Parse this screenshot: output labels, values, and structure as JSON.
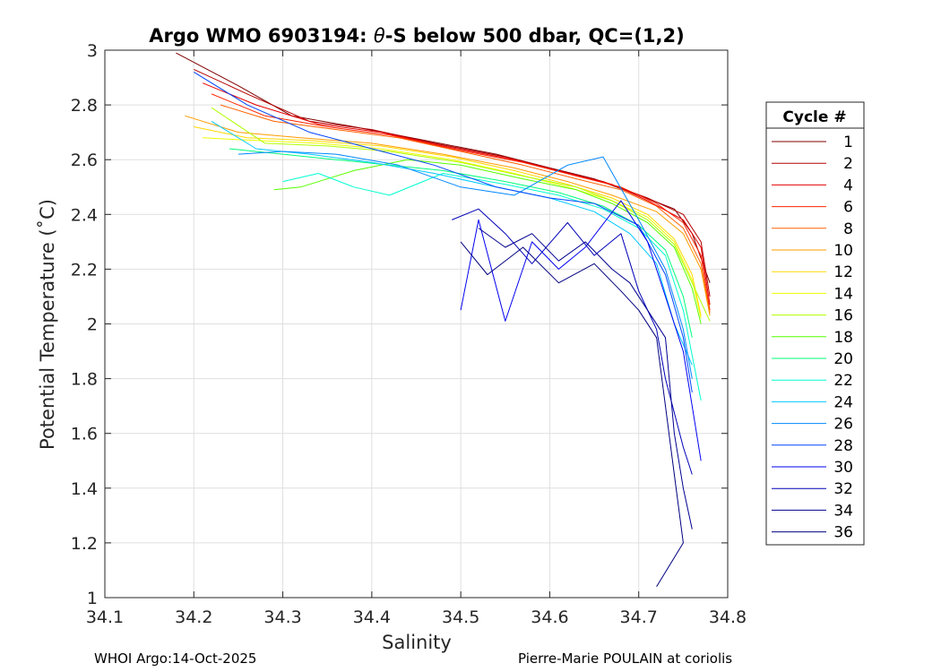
{
  "chart_data": {
    "type": "line",
    "title_prefix": "Argo WMO 6903194: ",
    "title_theta": "θ",
    "title_suffix": "-S below 500 dbar,  QC=(1,2)",
    "xlabel": "Salinity",
    "ylabel": "Potential Temperature (˚C)",
    "xlim": [
      34.1,
      34.8
    ],
    "ylim": [
      1,
      3
    ],
    "xticks": [
      "34.1",
      "34.2",
      "34.3",
      "34.4",
      "34.5",
      "34.6",
      "34.7",
      "34.8"
    ],
    "yticks": [
      "1",
      "1.2",
      "1.4",
      "1.6",
      "1.8",
      "2",
      "2.2",
      "2.4",
      "2.6",
      "2.8",
      "3"
    ],
    "grid": true,
    "legend_title": "Cycle #",
    "legend_position": "outside-right",
    "series": [
      {
        "name": "1",
        "color": "#800000",
        "x": [
          34.18,
          34.25,
          34.31,
          34.38,
          34.46,
          34.54,
          34.6,
          34.65,
          34.7,
          34.74,
          34.76,
          34.78
        ],
        "y": [
          2.99,
          2.87,
          2.76,
          2.72,
          2.67,
          2.62,
          2.57,
          2.53,
          2.47,
          2.42,
          2.33,
          2.15
        ]
      },
      {
        "name": "2",
        "color": "#b30000",
        "x": [
          34.2,
          34.26,
          34.33,
          34.4,
          34.47,
          34.55,
          34.61,
          34.66,
          34.71,
          34.75,
          34.77,
          34.78
        ],
        "y": [
          2.93,
          2.84,
          2.74,
          2.71,
          2.66,
          2.61,
          2.56,
          2.52,
          2.46,
          2.4,
          2.3,
          2.1
        ]
      },
      {
        "name": "4",
        "color": "#e60000",
        "x": [
          34.21,
          34.27,
          34.34,
          34.41,
          34.48,
          34.56,
          34.62,
          34.67,
          34.71,
          34.75,
          34.77,
          34.78
        ],
        "y": [
          2.88,
          2.8,
          2.73,
          2.7,
          2.65,
          2.6,
          2.55,
          2.51,
          2.45,
          2.38,
          2.28,
          2.07
        ]
      },
      {
        "name": "6",
        "color": "#ff2400",
        "x": [
          34.22,
          34.28,
          34.35,
          34.42,
          34.49,
          34.57,
          34.63,
          34.68,
          34.72,
          34.75,
          34.77,
          34.78
        ],
        "y": [
          2.84,
          2.76,
          2.72,
          2.69,
          2.64,
          2.59,
          2.54,
          2.5,
          2.44,
          2.37,
          2.25,
          2.05
        ]
      },
      {
        "name": "8",
        "color": "#ff6000",
        "x": [
          34.23,
          34.29,
          34.36,
          34.43,
          34.5,
          34.57,
          34.63,
          34.68,
          34.72,
          34.75,
          34.77,
          34.78
        ],
        "y": [
          2.8,
          2.74,
          2.71,
          2.68,
          2.63,
          2.58,
          2.53,
          2.49,
          2.43,
          2.35,
          2.22,
          2.04
        ]
      },
      {
        "name": "10",
        "color": "#ff9c00",
        "x": [
          34.19,
          34.25,
          34.32,
          34.4,
          34.48,
          34.56,
          34.62,
          34.67,
          34.72,
          34.75,
          34.77,
          34.78
        ],
        "y": [
          2.76,
          2.7,
          2.68,
          2.66,
          2.62,
          2.57,
          2.52,
          2.47,
          2.41,
          2.33,
          2.2,
          2.03
        ]
      },
      {
        "name": "12",
        "color": "#ffd800",
        "x": [
          34.2,
          34.26,
          34.33,
          34.41,
          34.49,
          34.56,
          34.62,
          34.67,
          34.71,
          34.74,
          34.76,
          34.77
        ],
        "y": [
          2.72,
          2.68,
          2.67,
          2.65,
          2.61,
          2.56,
          2.51,
          2.46,
          2.4,
          2.31,
          2.18,
          2.03
        ]
      },
      {
        "name": "14",
        "color": "#eeff00",
        "x": [
          34.21,
          34.27,
          34.34,
          34.41,
          34.49,
          34.56,
          34.62,
          34.67,
          34.71,
          34.74,
          34.76,
          34.77
        ],
        "y": [
          2.68,
          2.67,
          2.66,
          2.64,
          2.6,
          2.55,
          2.5,
          2.45,
          2.39,
          2.3,
          2.16,
          2.02
        ]
      },
      {
        "name": "16",
        "color": "#b0ff00",
        "x": [
          34.22,
          34.28,
          34.35,
          34.42,
          34.5,
          34.57,
          34.63,
          34.67,
          34.71,
          34.74,
          34.76,
          34.78
        ],
        "y": [
          2.79,
          2.66,
          2.65,
          2.63,
          2.59,
          2.54,
          2.5,
          2.45,
          2.38,
          2.29,
          2.15,
          2.01
        ]
      },
      {
        "name": "18",
        "color": "#55ff00",
        "x": [
          34.29,
          34.32,
          34.38,
          34.44,
          34.5,
          34.57,
          34.63,
          34.67,
          34.71,
          34.74,
          34.76,
          34.77
        ],
        "y": [
          2.49,
          2.5,
          2.56,
          2.6,
          2.58,
          2.53,
          2.49,
          2.44,
          2.37,
          2.28,
          2.13,
          2.0
        ]
      },
      {
        "name": "20",
        "color": "#00ff7a",
        "x": [
          34.24,
          34.3,
          34.36,
          34.42,
          34.48,
          34.55,
          34.61,
          34.66,
          34.7,
          34.73,
          34.75,
          34.76
        ],
        "y": [
          2.64,
          2.62,
          2.6,
          2.58,
          2.56,
          2.52,
          2.48,
          2.43,
          2.36,
          2.27,
          2.1,
          1.95
        ]
      },
      {
        "name": "22",
        "color": "#00ffd0",
        "x": [
          34.3,
          34.34,
          34.38,
          34.42,
          34.48,
          34.55,
          34.61,
          34.66,
          34.7,
          34.73,
          34.75,
          34.77
        ],
        "y": [
          2.52,
          2.55,
          2.5,
          2.47,
          2.55,
          2.51,
          2.47,
          2.42,
          2.35,
          2.25,
          2.05,
          1.72
        ]
      },
      {
        "name": "24",
        "color": "#00c8ff",
        "x": [
          34.22,
          34.27,
          34.33,
          34.4,
          34.47,
          34.54,
          34.6,
          34.65,
          34.69,
          34.72,
          34.74,
          34.76
        ],
        "y": [
          2.74,
          2.64,
          2.62,
          2.59,
          2.55,
          2.5,
          2.46,
          2.41,
          2.33,
          2.22,
          2.0,
          1.85
        ]
      },
      {
        "name": "26",
        "color": "#0088ff",
        "x": [
          34.25,
          34.3,
          34.36,
          34.43,
          34.5,
          34.56,
          34.62,
          34.66,
          34.7,
          34.73,
          34.75,
          34.76
        ],
        "y": [
          2.62,
          2.63,
          2.62,
          2.58,
          2.5,
          2.47,
          2.58,
          2.61,
          2.38,
          2.2,
          1.98,
          1.8
        ]
      },
      {
        "name": "28",
        "color": "#0044ff",
        "x": [
          34.2,
          34.26,
          34.33,
          34.4,
          34.47,
          34.54,
          34.6,
          34.65,
          34.7,
          34.73,
          34.75,
          34.76
        ],
        "y": [
          2.92,
          2.8,
          2.7,
          2.64,
          2.58,
          2.5,
          2.46,
          2.44,
          2.36,
          2.18,
          1.95,
          1.75
        ]
      },
      {
        "name": "30",
        "color": "#0000f0",
        "x": [
          34.5,
          34.52,
          34.55,
          34.58,
          34.61,
          34.64,
          34.68,
          34.71,
          34.73,
          34.75,
          34.76,
          34.77
        ],
        "y": [
          2.05,
          2.38,
          2.01,
          2.3,
          2.2,
          2.28,
          2.45,
          2.3,
          2.1,
          1.9,
          1.7,
          1.5
        ]
      },
      {
        "name": "32",
        "color": "#0000b8",
        "x": [
          34.49,
          34.52,
          34.55,
          34.58,
          34.62,
          34.65,
          34.68,
          34.7,
          34.72,
          34.73,
          34.75,
          34.76
        ],
        "y": [
          2.38,
          2.42,
          2.33,
          2.22,
          2.37,
          2.25,
          2.33,
          2.12,
          1.98,
          1.8,
          1.55,
          1.45
        ]
      },
      {
        "name": "34",
        "color": "#000090",
        "x": [
          34.52,
          34.55,
          34.58,
          34.61,
          34.64,
          34.67,
          34.69,
          34.71,
          34.73,
          34.74,
          34.75,
          34.76
        ],
        "y": [
          2.35,
          2.28,
          2.33,
          2.23,
          2.3,
          2.2,
          2.15,
          2.05,
          1.95,
          1.6,
          1.4,
          1.25
        ]
      },
      {
        "name": "36",
        "color": "#000080",
        "x": [
          34.5,
          34.53,
          34.57,
          34.61,
          34.65,
          34.68,
          34.7,
          34.72,
          34.73,
          34.74,
          34.75,
          34.72
        ],
        "y": [
          2.3,
          2.18,
          2.28,
          2.15,
          2.22,
          2.12,
          2.05,
          1.95,
          1.7,
          1.45,
          1.2,
          1.04
        ]
      }
    ]
  },
  "footer": {
    "left": "WHOI Argo:14-Oct-2025",
    "right": "Pierre-Marie POULAIN at coriolis"
  }
}
